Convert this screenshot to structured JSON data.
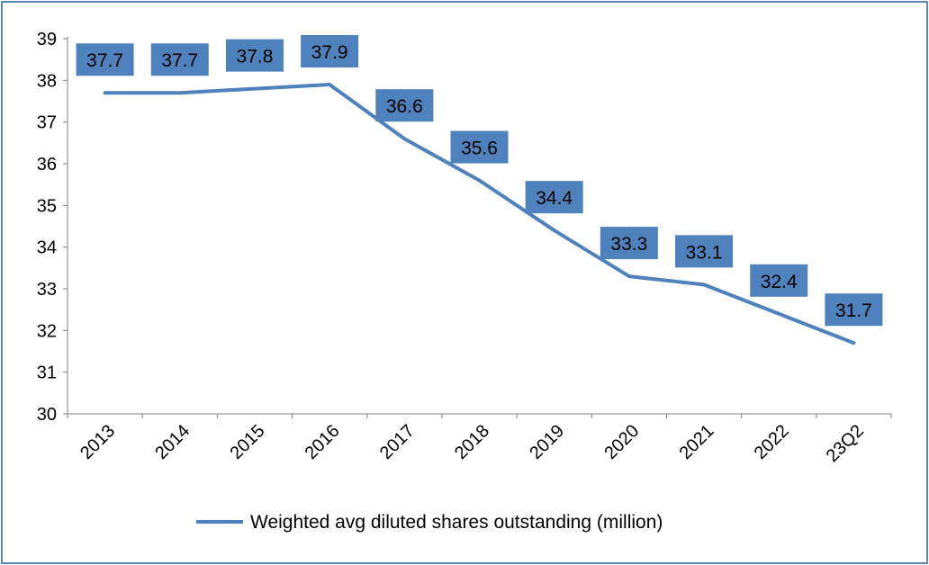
{
  "chart_data": {
    "type": "line",
    "categories": [
      "2013",
      "2014",
      "2015",
      "2016",
      "2017",
      "2018",
      "2019",
      "2020",
      "2021",
      "2022",
      "23Q2"
    ],
    "series": [
      {
        "name": "Weighted avg diluted shares outstanding (million)",
        "values": [
          37.7,
          37.7,
          37.8,
          37.9,
          36.6,
          35.6,
          34.4,
          33.3,
          33.1,
          32.4,
          31.7
        ],
        "data_labels": [
          "37.7",
          "37.7",
          "37.8",
          "37.9",
          "36.6",
          "35.6",
          "34.4",
          "33.3",
          "33.1",
          "32.4",
          "31.7"
        ]
      }
    ],
    "y_ticks": [
      "30",
      "31",
      "32",
      "33",
      "34",
      "35",
      "36",
      "37",
      "38",
      "39"
    ],
    "ylim": [
      30,
      39
    ],
    "grid": false,
    "legend_position": "bottom",
    "colors": {
      "line": "#4f81bd",
      "label_fill": "#4f81bd",
      "frame": "#5b87b8",
      "axis": "#808080"
    }
  }
}
